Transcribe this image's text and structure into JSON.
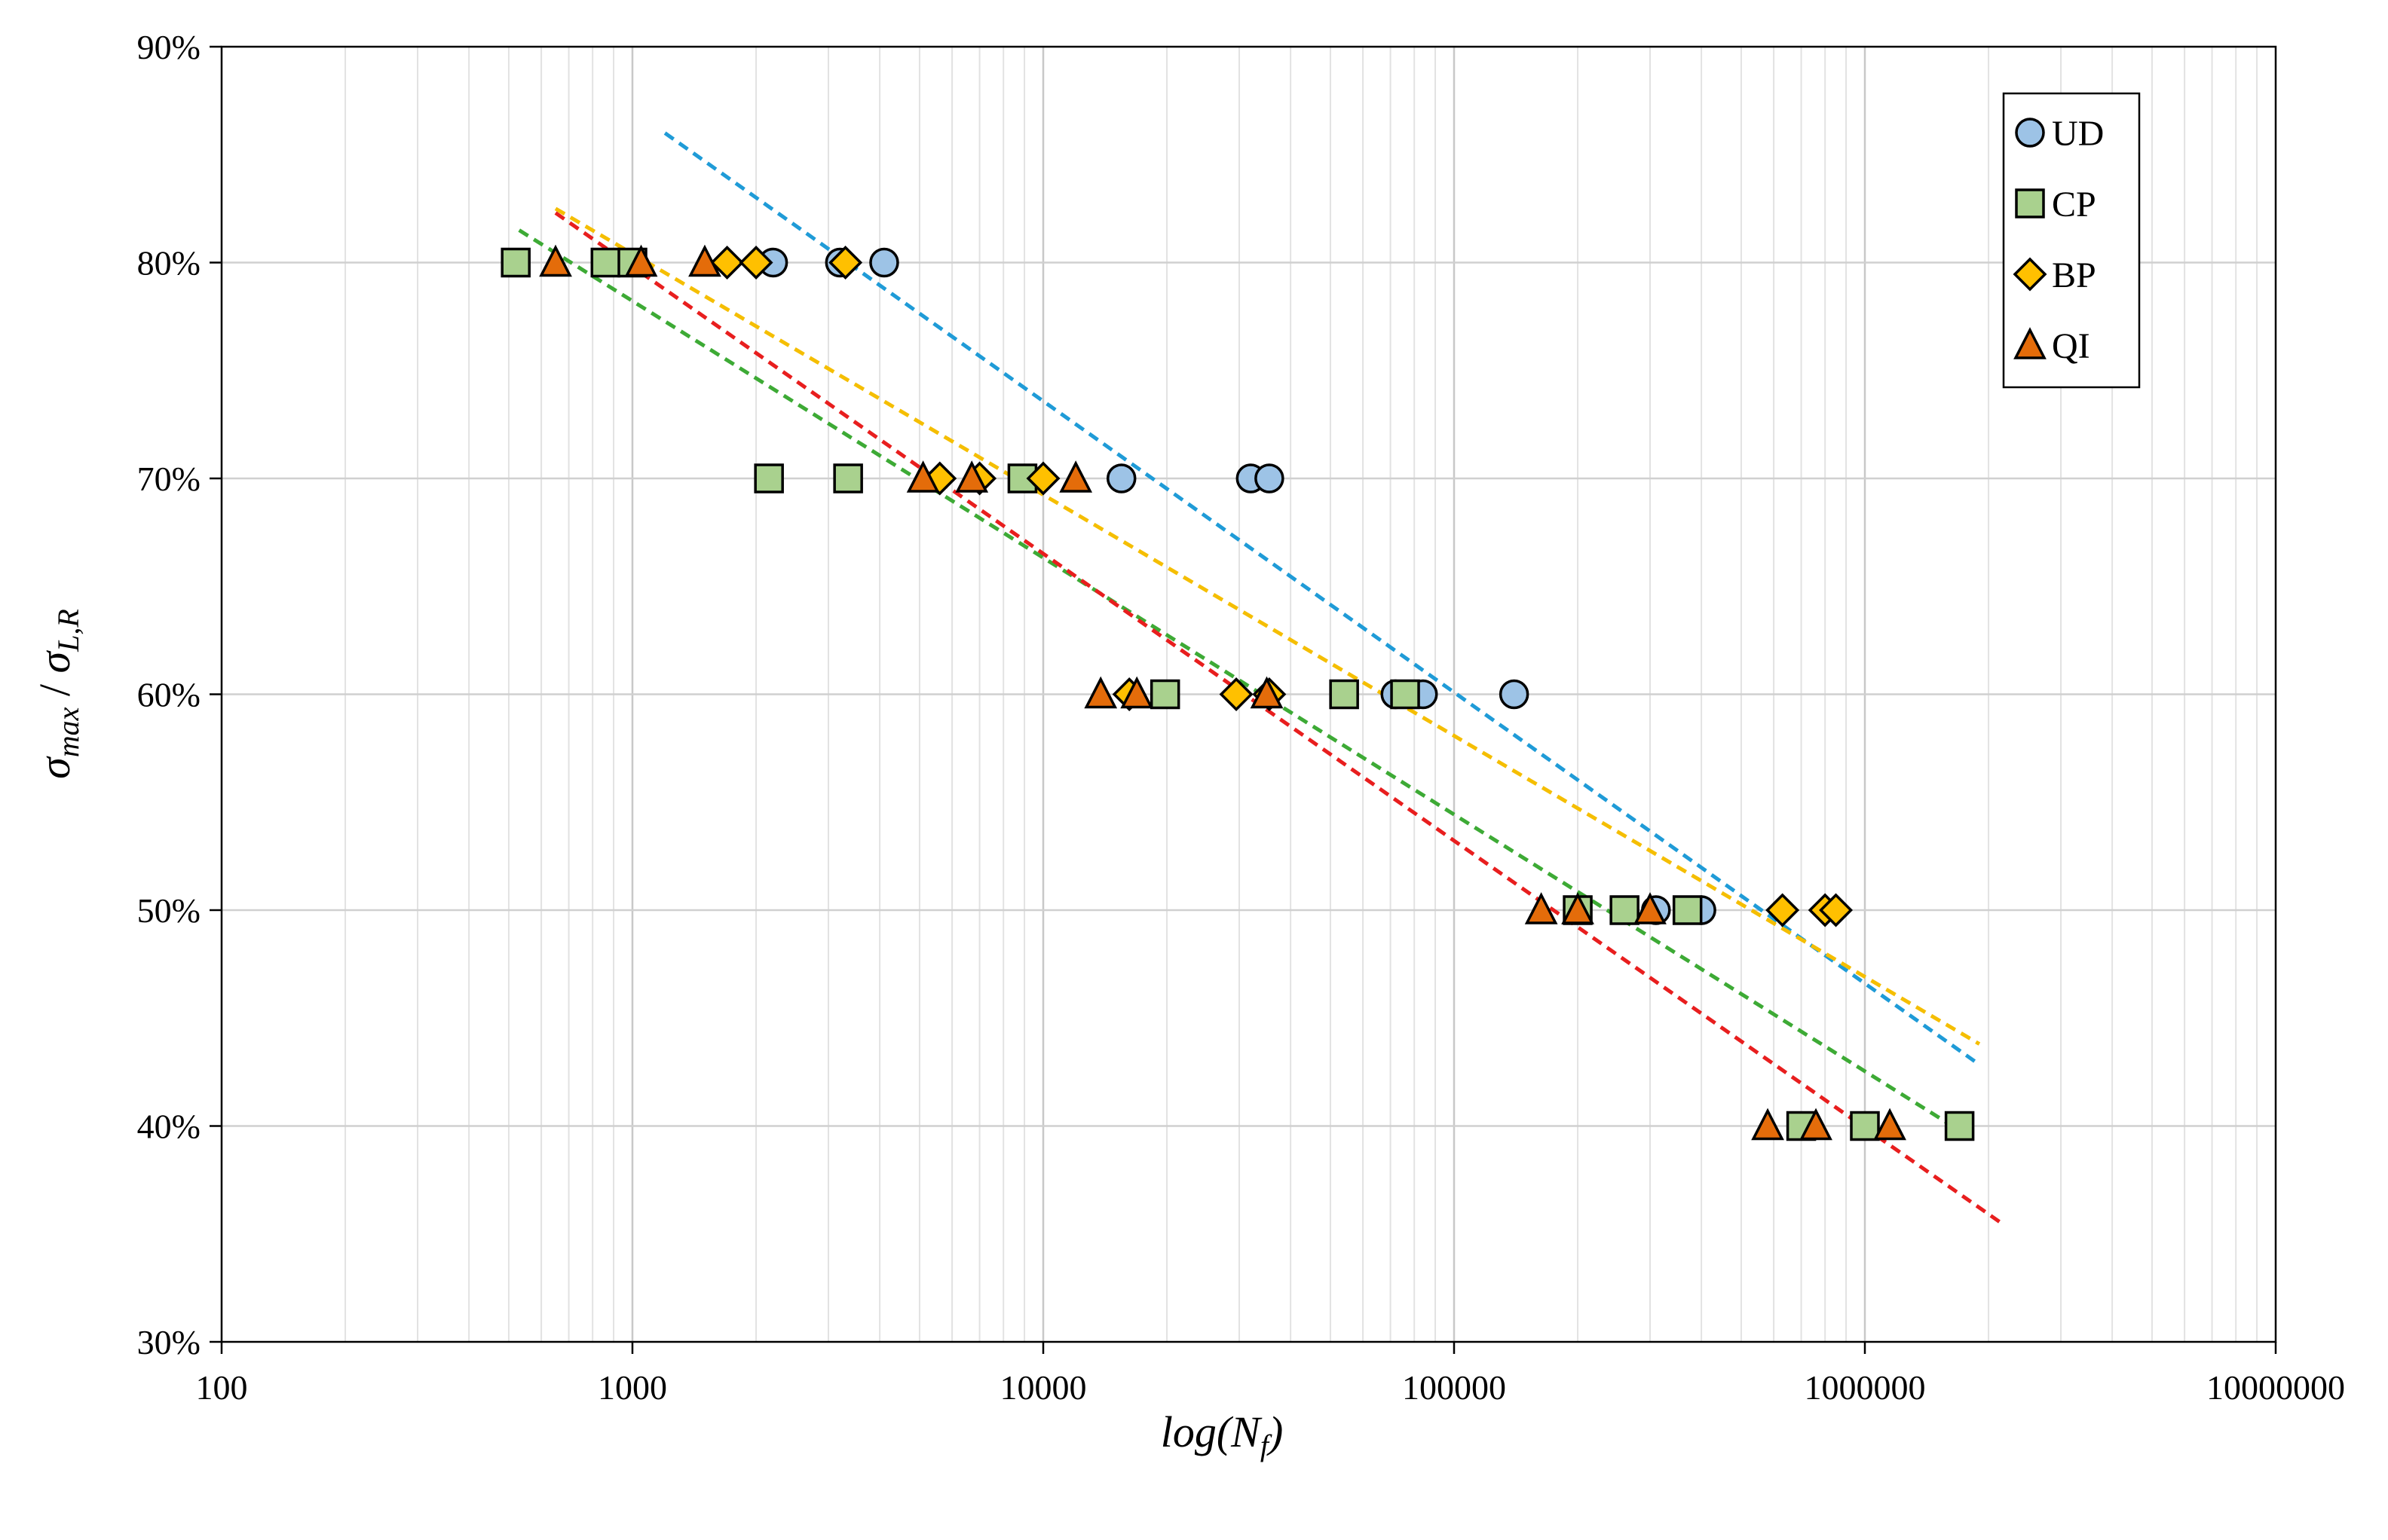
{
  "chart_data": {
    "type": "scatter",
    "title": "",
    "xlabel": {
      "base": "log(N",
      "sub": "f",
      "close": ")"
    },
    "ylabel": {
      "num": "σ",
      "num_sub": "max",
      "sep": " / ",
      "den": "σ",
      "den_sub": "L,R"
    },
    "x_scale": "log",
    "xlim": [
      100,
      10000000
    ],
    "ylim": [
      30,
      90
    ],
    "x_tick_values": [
      100,
      1000,
      10000,
      100000,
      1000000,
      10000000
    ],
    "x_tick_labels": [
      "100",
      "1000",
      "10000",
      "100000",
      "1000000",
      "10000000"
    ],
    "y_tick_values": [
      30,
      40,
      50,
      60,
      70,
      80,
      90
    ],
    "y_tick_labels": [
      "30%",
      "40%",
      "50%",
      "60%",
      "70%",
      "80%",
      "90%"
    ],
    "grid": true,
    "legend_position": "top-right",
    "series": [
      {
        "name": "UD",
        "marker": "circle",
        "color": "#9DC3E6",
        "points": [
          [
            2200,
            80
          ],
          [
            3200,
            80
          ],
          [
            4100,
            80
          ],
          [
            15500,
            70
          ],
          [
            32000,
            70
          ],
          [
            35500,
            70
          ],
          [
            72000,
            60
          ],
          [
            84000,
            60
          ],
          [
            140000,
            60
          ],
          [
            310000,
            50
          ],
          [
            400000,
            50
          ]
        ],
        "trend": {
          "color": "#1F9BD7",
          "x": [
            1200,
            1850000
          ],
          "y": [
            86,
            43
          ]
        }
      },
      {
        "name": "CP",
        "marker": "square",
        "color": "#A9D18E",
        "points": [
          [
            520,
            80
          ],
          [
            860,
            80
          ],
          [
            1000,
            80
          ],
          [
            2150,
            70
          ],
          [
            3350,
            70
          ],
          [
            8900,
            70
          ],
          [
            19800,
            60
          ],
          [
            54000,
            60
          ],
          [
            76000,
            60
          ],
          [
            200000,
            50
          ],
          [
            260000,
            50
          ],
          [
            370000,
            50
          ],
          [
            700000,
            40
          ],
          [
            1000000,
            40
          ],
          [
            1700000,
            40
          ]
        ],
        "trend": {
          "color": "#3DAA35",
          "x": [
            530,
            1800000
          ],
          "y": [
            81.5,
            39.5
          ]
        }
      },
      {
        "name": "BP",
        "marker": "diamond",
        "color": "#FFC000",
        "points": [
          [
            1700,
            80
          ],
          [
            2000,
            80
          ],
          [
            3300,
            80
          ],
          [
            5600,
            70
          ],
          [
            7000,
            70
          ],
          [
            10000,
            70
          ],
          [
            16200,
            60
          ],
          [
            29500,
            60
          ],
          [
            35500,
            60
          ],
          [
            630000,
            50
          ],
          [
            800000,
            50
          ],
          [
            850000,
            50
          ]
        ],
        "trend": {
          "color": "#F5BE00",
          "x": [
            650,
            1900000
          ],
          "y": [
            82.5,
            43.8
          ]
        }
      },
      {
        "name": "QI",
        "marker": "triangle",
        "color": "#E46C0A",
        "points": [
          [
            650,
            80
          ],
          [
            1050,
            80
          ],
          [
            1500,
            80
          ],
          [
            5100,
            70
          ],
          [
            6700,
            70
          ],
          [
            12000,
            70
          ],
          [
            13800,
            60
          ],
          [
            16900,
            60
          ],
          [
            35000,
            60
          ],
          [
            163000,
            50
          ],
          [
            200000,
            50
          ],
          [
            300000,
            50
          ],
          [
            580000,
            40
          ],
          [
            760000,
            40
          ],
          [
            1150000,
            40
          ]
        ],
        "trend": {
          "color": "#E81E1E",
          "x": [
            650,
            2150000
          ],
          "y": [
            82.3,
            35.5
          ]
        }
      }
    ]
  }
}
